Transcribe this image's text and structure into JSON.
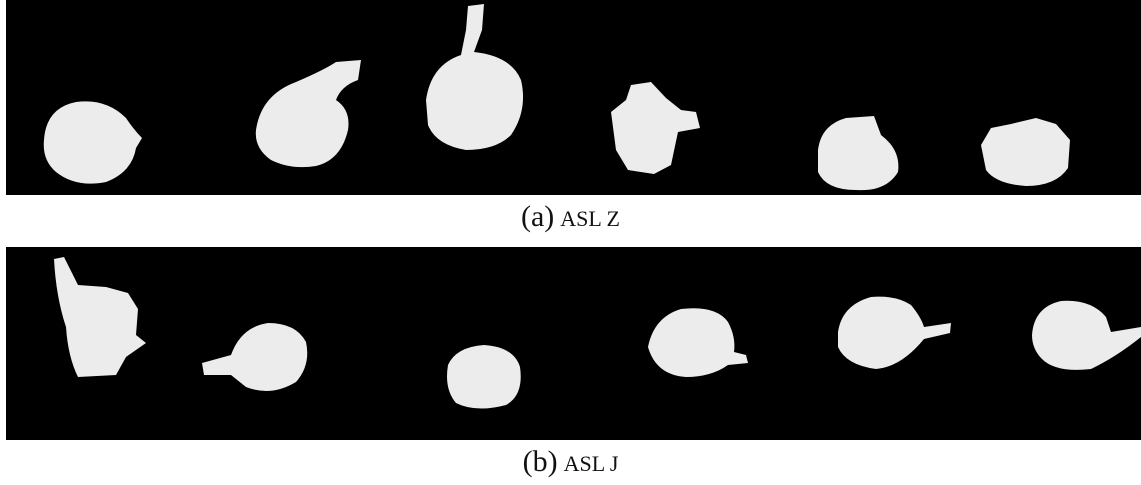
{
  "figure": {
    "panels": [
      {
        "label": "(a)",
        "text": "ASL Z"
      },
      {
        "label": "(b)",
        "text": "ASL J"
      }
    ]
  }
}
